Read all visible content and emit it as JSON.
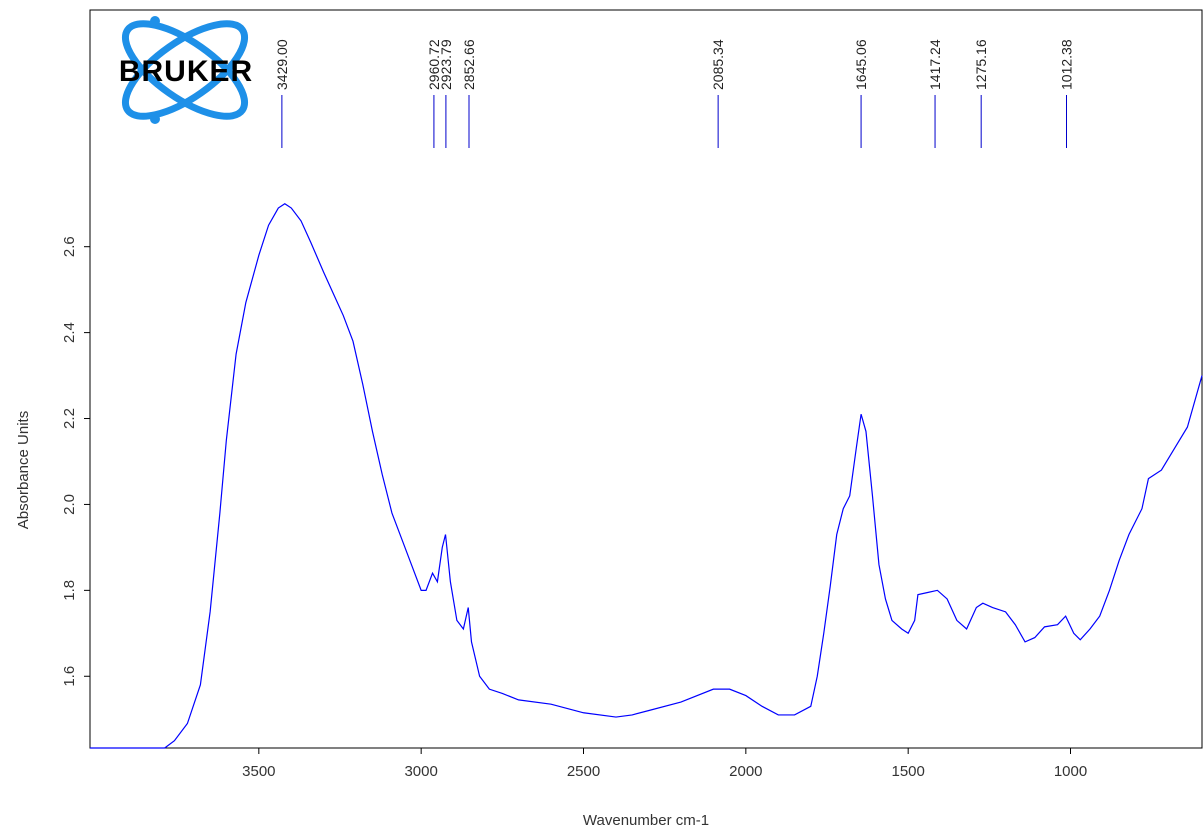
{
  "logo": "BRUKER",
  "chart_data": {
    "type": "line",
    "xlabel": "Wavenumber cm-1",
    "ylabel": "Absorbance Units",
    "xlim": [
      4020,
      595
    ],
    "ylim": [
      1.433,
      3.151
    ],
    "xticks": [
      3500,
      3000,
      2500,
      2000,
      1500,
      1000
    ],
    "yticks": [
      1.6,
      1.8,
      {
        "value": 2,
        "label": "2.0"
      },
      2.2,
      2.4,
      2.6
    ],
    "peaks": [
      {
        "value": 3429,
        "label": "3429.00"
      },
      {
        "value": 2960.72,
        "label": "2960.72"
      },
      {
        "value": 2923.79,
        "label": "2923.79"
      },
      {
        "value": 2852.66,
        "label": "2852.66"
      },
      {
        "value": 2085.34,
        "label": "2085.34"
      },
      {
        "value": 1645.06,
        "label": "1645.06"
      },
      {
        "value": 1417.24,
        "label": "1417.24"
      },
      {
        "value": 1275.16,
        "label": "1275.16"
      },
      {
        "value": 1012.38,
        "label": "1012.38"
      }
    ],
    "x": [
      4020,
      3790,
      3760,
      3720,
      3680,
      3650,
      3620,
      3600,
      3570,
      3540,
      3500,
      3470,
      3440,
      3420,
      3400,
      3370,
      3340,
      3300,
      3270,
      3240,
      3210,
      3180,
      3150,
      3120,
      3090,
      3060,
      3030,
      3000,
      2985,
      2965,
      2950,
      2935,
      2925,
      2910,
      2890,
      2870,
      2855,
      2845,
      2820,
      2790,
      2750,
      2700,
      2600,
      2500,
      2400,
      2350,
      2300,
      2200,
      2100,
      2050,
      2000,
      1950,
      1900,
      1850,
      1800,
      1780,
      1760,
      1740,
      1720,
      1700,
      1680,
      1660,
      1645,
      1630,
      1610,
      1590,
      1570,
      1550,
      1520,
      1500,
      1480,
      1470,
      1440,
      1410,
      1380,
      1350,
      1320,
      1290,
      1270,
      1240,
      1200,
      1170,
      1140,
      1110,
      1080,
      1040,
      1015,
      990,
      970,
      940,
      910,
      880,
      850,
      820,
      780,
      760,
      720,
      680,
      640,
      595
    ],
    "series": [
      {
        "name": "spectrum",
        "color": "#0000ff",
        "values": [
          1.433,
          1.433,
          1.45,
          1.49,
          1.58,
          1.75,
          1.98,
          2.15,
          2.35,
          2.47,
          2.58,
          2.65,
          2.69,
          2.7,
          2.69,
          2.66,
          2.61,
          2.54,
          2.49,
          2.44,
          2.38,
          2.28,
          2.17,
          2.07,
          1.98,
          1.92,
          1.86,
          1.8,
          1.8,
          1.84,
          1.82,
          1.9,
          1.93,
          1.82,
          1.73,
          1.71,
          1.76,
          1.68,
          1.6,
          1.57,
          1.56,
          1.545,
          1.535,
          1.515,
          1.505,
          1.51,
          1.52,
          1.54,
          1.57,
          1.57,
          1.555,
          1.53,
          1.51,
          1.51,
          1.53,
          1.6,
          1.7,
          1.81,
          1.93,
          1.99,
          2.02,
          2.13,
          2.21,
          2.17,
          2.02,
          1.86,
          1.78,
          1.73,
          1.71,
          1.7,
          1.73,
          1.79,
          1.795,
          1.8,
          1.78,
          1.73,
          1.71,
          1.76,
          1.77,
          1.76,
          1.75,
          1.72,
          1.68,
          1.69,
          1.715,
          1.72,
          1.74,
          1.7,
          1.685,
          1.71,
          1.74,
          1.8,
          1.87,
          1.93,
          1.99,
          2.06,
          2.08,
          2.13,
          2.18,
          2.3
        ]
      }
    ]
  }
}
